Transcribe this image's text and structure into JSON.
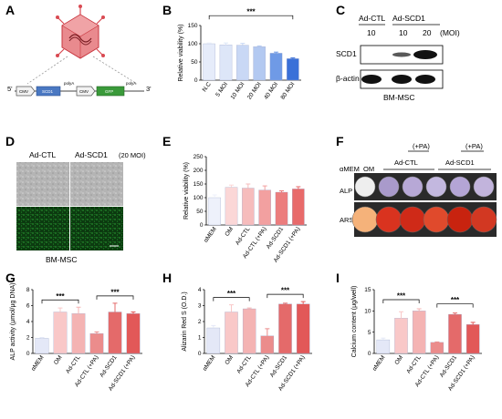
{
  "panels": {
    "A": "A",
    "B": "B",
    "C": "C",
    "D": "D",
    "E": "E",
    "F": "F",
    "G": "G",
    "H": "H",
    "I": "I"
  },
  "panelA": {
    "five_prime": "5'",
    "three_prime": "3'",
    "cmv1": "CMV",
    "scd1": "SCD1",
    "polya1": "polyA",
    "cmv2": "CMV",
    "gfp": "GFP",
    "polya2": "polyA",
    "colors": {
      "virus": "#e0525a",
      "scd1": "#4a78c2",
      "gfp": "#3a9a3a"
    }
  },
  "panelC": {
    "header_ctl": "Ad-CTL",
    "header_scd1": "Ad-SCD1",
    "moi_values": [
      "10",
      "10",
      "20"
    ],
    "moi_unit": "(MOI)",
    "rows": [
      "SCD1",
      "β-actin"
    ],
    "caption": "BM-MSC"
  },
  "panelD": {
    "col1": "Ad-CTL",
    "col2": "Ad-SCD1",
    "moi": "(20 MOI)",
    "caption": "BM-MSC"
  },
  "panelF": {
    "plus_pa_1": "(+PA)",
    "plus_pa_2": "(+PA)",
    "columns": [
      "αMEM",
      "OM",
      "Ad-CTL",
      "Ad-SCD1"
    ],
    "rows": [
      "ALP",
      "ARS"
    ]
  },
  "chart_data": [
    {
      "type": "bar",
      "panel": "B",
      "categories": [
        "N.C",
        "5 MOI",
        "10 MOI",
        "20 MOI",
        "40 MOI",
        "80 MOI"
      ],
      "values": [
        100,
        97,
        96,
        92,
        74,
        59
      ],
      "errors": [
        2,
        5,
        5,
        2,
        3,
        2
      ],
      "colors": [
        "#e6ecfa",
        "#dde6f8",
        "#c9d8f5",
        "#b3c9f1",
        "#6f9ae6",
        "#3a70d8"
      ],
      "ylabel": "Relative viability (%)",
      "ylim": [
        0,
        150
      ],
      "yticks": [
        "0",
        "50",
        "100",
        "150"
      ],
      "significance": [
        "***"
      ]
    },
    {
      "type": "bar",
      "panel": "E",
      "categories": [
        "αMEM",
        "OM",
        "Ad-CTL",
        "Ad-CTL (+PA)",
        "Ad-SCD1",
        "Ad-SCD1 (+PA)"
      ],
      "values": [
        100,
        138,
        135,
        128,
        120,
        132
      ],
      "errors": [
        10,
        8,
        15,
        15,
        5,
        8
      ],
      "colors": [
        "#eef1fb",
        "#fbd7d7",
        "#f6bcbc",
        "#f2a0a0",
        "#ec7d7d",
        "#e86a6a"
      ],
      "ylabel": "Relative viability (%)",
      "ylim": [
        0,
        250
      ],
      "yticks": [
        "0",
        "50",
        "100",
        "150",
        "200",
        "250"
      ]
    },
    {
      "type": "bar",
      "panel": "G",
      "categories": [
        "αMEM",
        "OM",
        "Ad-CTL",
        "Ad-CTL (+PA)",
        "Ad-SCD1",
        "Ad-SCD1 (+PA)"
      ],
      "values": [
        1.9,
        5.2,
        5.0,
        2.5,
        5.2,
        5.0
      ],
      "errors": [
        0.1,
        0.5,
        0.8,
        0.2,
        1.1,
        0.2
      ],
      "colors": [
        "#e4e8f7",
        "#f9c8c8",
        "#f4b3b3",
        "#eb8c8c",
        "#e46a6a",
        "#e25858"
      ],
      "ylabel": "ALP activity (μmol/μg DNA)",
      "ylim": [
        0,
        8
      ],
      "yticks": [
        "0",
        "2",
        "4",
        "6",
        "8"
      ],
      "significance": [
        "***",
        "***"
      ]
    },
    {
      "type": "bar",
      "panel": "H",
      "categories": [
        "αMEM",
        "OM",
        "Ad-CTL",
        "Ad-CTL (+PA)",
        "Ad-SCD1",
        "Ad-SCD1 (+PA)"
      ],
      "values": [
        1.6,
        2.6,
        2.8,
        1.1,
        3.1,
        3.1
      ],
      "errors": [
        0.15,
        0.45,
        0.05,
        0.45,
        0.05,
        0.15
      ],
      "colors": [
        "#e4e8f7",
        "#f9c8c8",
        "#f4b3b3",
        "#eb8c8c",
        "#e46a6a",
        "#e25858"
      ],
      "ylabel": "Alizarin Red S (O.D.)",
      "ylim": [
        0,
        4
      ],
      "yticks": [
        "0",
        "1",
        "2",
        "3",
        "4"
      ],
      "significance": [
        "***",
        "***"
      ]
    },
    {
      "type": "bar",
      "panel": "I",
      "categories": [
        "αMEM",
        "OM",
        "Ad-CTL",
        "Ad-CTL (+PA)",
        "Ad-SCD1",
        "Ad-SCD1 (+PA)"
      ],
      "values": [
        3.2,
        8.3,
        10.0,
        2.6,
        9.2,
        6.8
      ],
      "errors": [
        0.4,
        1.5,
        0.5,
        0.1,
        0.3,
        0.5
      ],
      "colors": [
        "#e4e8f7",
        "#f9c8c8",
        "#f4b3b3",
        "#eb8c8c",
        "#e46a6a",
        "#e25858"
      ],
      "ylabel": "Calcium content (μg/well)",
      "ylim": [
        0,
        15
      ],
      "yticks": [
        "0",
        "5",
        "10",
        "15"
      ],
      "significance": [
        "***",
        "***"
      ]
    }
  ]
}
